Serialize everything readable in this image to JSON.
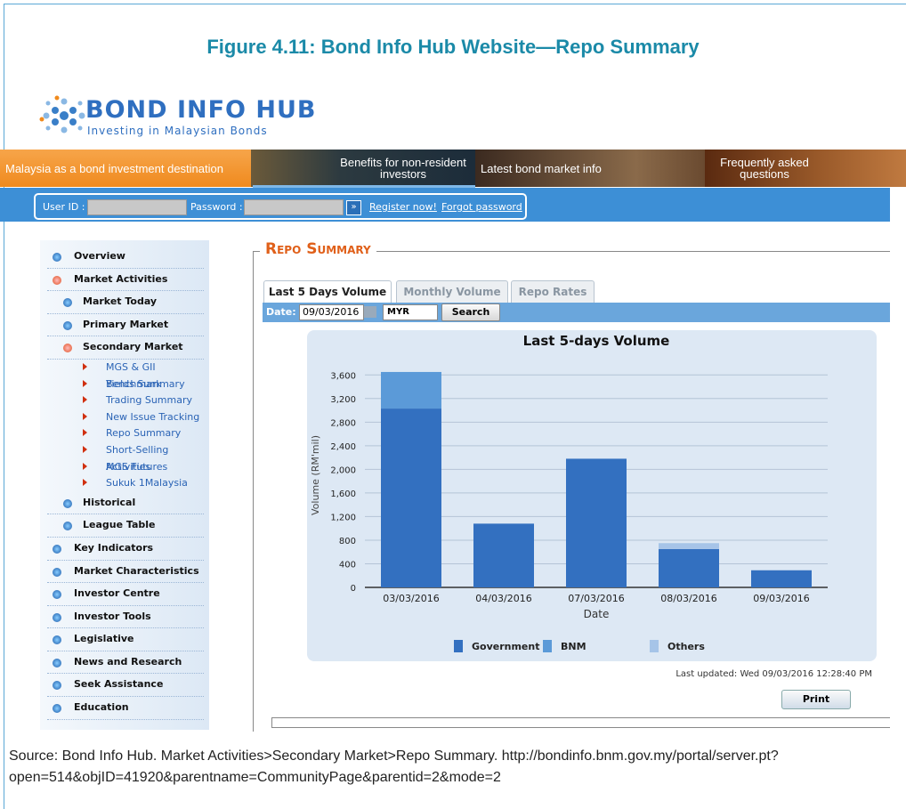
{
  "figure_title": "Figure 4.11: Bond Info Hub Website—Repo Summary",
  "logo": {
    "name": "BOND INFO HUB",
    "tagline": "Investing in Malaysian Bonds"
  },
  "banner": [
    "Malaysia as a bond investment destination",
    "Benefits for non-resident investors",
    "Latest bond market info",
    "Frequently asked questions"
  ],
  "login": {
    "user_id": "User ID :",
    "password": "Password :",
    "register": "Register now!",
    "forgot": "Forgot password"
  },
  "nav": [
    {
      "label": "Overview"
    },
    {
      "label": "Market Activities",
      "items": [
        {
          "label": "Market Today"
        },
        {
          "label": "Primary Market"
        },
        {
          "label": "Secondary Market",
          "items": [
            {
              "label": "MGS & GII Benchmark"
            },
            {
              "label": "Yields Summary"
            },
            {
              "label": "Trading Summary"
            },
            {
              "label": "New Issue Tracking"
            },
            {
              "label": "Repo Summary"
            },
            {
              "label": "Short-Selling Activities"
            },
            {
              "label": "MGS Futures"
            },
            {
              "label": "Sukuk 1Malaysia"
            }
          ]
        },
        {
          "label": "Historical"
        },
        {
          "label": "League Table"
        }
      ]
    },
    {
      "label": "Key Indicators"
    },
    {
      "label": "Market Characteristics"
    },
    {
      "label": "Investor Centre"
    },
    {
      "label": "Investor Tools"
    },
    {
      "label": "Legislative"
    },
    {
      "label": "News and Research"
    },
    {
      "label": "Seek Assistance"
    },
    {
      "label": "Education"
    }
  ],
  "page_heading": "Repo Summary",
  "tabs": [
    "Last 5 Days Volume",
    "Monthly Volume",
    "Repo Rates"
  ],
  "filter": {
    "date_label": "Date:",
    "date": "09/03/2016",
    "currency": "MYR",
    "search": "Search"
  },
  "chart_data": {
    "type": "stacked_bar",
    "title": "Last 5-days Volume",
    "x_label": "Date",
    "y_label": "Volume (RM'mil)",
    "categories": [
      "03/03/2016",
      "04/03/2016",
      "07/03/2016",
      "08/03/2016",
      "09/03/2016"
    ],
    "series": [
      {
        "name": "Government",
        "color": "#3370c0",
        "values": [
          3030,
          1080,
          2180,
          650,
          290
        ]
      },
      {
        "name": "BNM",
        "color": "#5b9ad8",
        "values": [
          620,
          0,
          0,
          0,
          0
        ]
      },
      {
        "name": "Others",
        "color": "#a6c4e8",
        "values": [
          0,
          0,
          0,
          100,
          0
        ]
      }
    ],
    "ylim": [
      0,
      3800
    ],
    "yticks": [
      0,
      400,
      800,
      {
        "value": 1200,
        "label": "1,200"
      },
      {
        "value": 1600,
        "label": "1,600"
      },
      {
        "value": 2000,
        "label": "2,000"
      },
      {
        "value": 2400,
        "label": "2,400"
      },
      {
        "value": 2800,
        "label": "2,800"
      },
      {
        "value": 3200,
        "label": "3,200"
      },
      {
        "value": 3600,
        "label": "3,600"
      }
    ],
    "grid": true
  },
  "last_updated": "Last updated: Wed 09/03/2016 12:28:40 PM",
  "print": "Print",
  "source": "Source: Bond Info Hub. Market Activities>Secondary Market>Repo Summary. http://bondinfo.bnm.gov.my/portal/server.pt?open=514&objID=41920&parentname=CommunityPage&parentid=2&mode=2"
}
